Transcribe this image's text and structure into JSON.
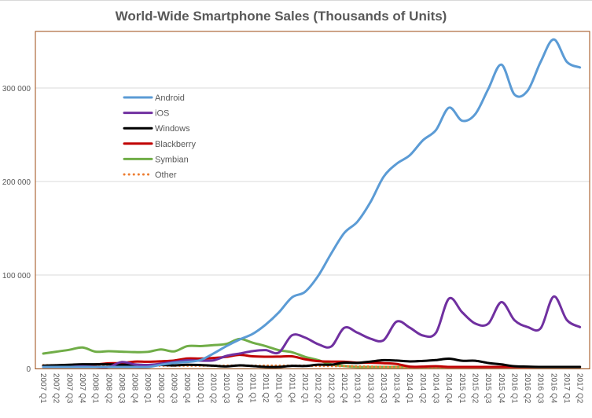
{
  "chart_data": {
    "type": "line",
    "title": "World-Wide Smartphone Sales (Thousands of Units)",
    "xlabel": "",
    "ylabel": "",
    "ylim": [
      0,
      360000
    ],
    "yticks": [
      0,
      100000,
      200000,
      300000
    ],
    "ytick_labels": [
      "0",
      "100 000",
      "200 000",
      "300 000"
    ],
    "grid": true,
    "legend_placement": "upper-left inside plot",
    "categories": [
      "2007 Q1",
      "2007 Q2",
      "2007 Q3",
      "2007 Q4",
      "2008 Q1",
      "2008 Q2",
      "2008 Q3",
      "2008 Q4",
      "2009 Q1",
      "2009 Q2",
      "2009 Q3",
      "2009 Q4",
      "2010 Q1",
      "2010 Q2",
      "2010 Q3",
      "2010 Q4",
      "2011 Q1",
      "2011 Q2",
      "2011 Q3",
      "2011 Q4",
      "2012 Q1",
      "2012 Q2",
      "2012 Q3",
      "2012 Q4",
      "2013 Q1",
      "2013 Q2",
      "2013 Q3",
      "2013 Q4",
      "2014 Q1",
      "2014 Q2",
      "2014 Q3",
      "2014 Q4",
      "2015 Q1",
      "2015 Q2",
      "2015 Q3",
      "2015 Q4",
      "2016 Q1",
      "2016 Q2",
      "2016 Q3",
      "2016 Q4",
      "2017 Q1",
      "2017 Q2"
    ],
    "series": [
      {
        "name": "Android",
        "color": "#5b9bd5",
        "style": "solid",
        "values": [
          0,
          0,
          0,
          0,
          0,
          0,
          500,
          1000,
          1500,
          4000,
          6000,
          7000,
          9000,
          16000,
          24000,
          31000,
          37000,
          47000,
          60000,
          76000,
          82000,
          99000,
          123000,
          145000,
          157000,
          178000,
          205000,
          219000,
          228000,
          244000,
          255000,
          279000,
          265000,
          272000,
          299000,
          325000,
          293000,
          297000,
          328000,
          352000,
          328000,
          322000
        ]
      },
      {
        "name": "iOS",
        "color": "#7030a0",
        "style": "solid",
        "values": [
          0,
          300,
          1100,
          2300,
          1700,
          700,
          6900,
          4400,
          3800,
          5200,
          7000,
          8700,
          8400,
          8700,
          13500,
          16000,
          18600,
          19600,
          17100,
          35500,
          33100,
          26000,
          23500,
          43500,
          38300,
          31900,
          30300,
          50200,
          43700,
          35300,
          38200,
          74800,
          60200,
          48100,
          48000,
          71000,
          51600,
          44400,
          43000,
          77000,
          51900,
          44300
        ]
      },
      {
        "name": "Windows",
        "color": "#000000",
        "style": "solid",
        "values": [
          3000,
          3500,
          4000,
          4500,
          4500,
          4500,
          4000,
          4000,
          3700,
          3800,
          3300,
          4000,
          3700,
          3000,
          2200,
          3400,
          2600,
          1700,
          1700,
          2800,
          2700,
          4100,
          4100,
          6200,
          6000,
          7400,
          8900,
          8500,
          7600,
          8100,
          9000,
          10500,
          8300,
          8300,
          5900,
          4400,
          2400,
          2000,
          900,
          1100,
          500,
          300
        ]
      },
      {
        "name": "Blackberry",
        "color": "#c00000",
        "style": "solid",
        "values": [
          2100,
          2400,
          3200,
          4000,
          4300,
          5600,
          5800,
          7400,
          7200,
          7700,
          8500,
          10700,
          10600,
          11200,
          12500,
          14600,
          13000,
          12600,
          12700,
          13000,
          9900,
          7900,
          7400,
          7300,
          6200,
          6200,
          5700,
          4800,
          2000,
          2000,
          2400,
          1700,
          1300,
          1200,
          1000,
          900,
          700,
          400,
          200,
          200,
          100,
          100
        ]
      },
      {
        "name": "Symbian",
        "color": "#70ad47",
        "style": "solid",
        "values": [
          16000,
          18000,
          20000,
          22500,
          18000,
          18500,
          18000,
          17500,
          17800,
          20400,
          18300,
          23900,
          24000,
          25000,
          26300,
          31600,
          27600,
          23900,
          19600,
          17400,
          12500,
          9000,
          4400,
          2600,
          1300,
          600,
          300,
          200,
          0,
          0,
          0,
          0,
          0,
          0,
          0,
          0,
          0,
          0,
          0,
          0,
          0,
          0
        ]
      },
      {
        "name": "Other",
        "color": "#ed7d31",
        "style": "dotted",
        "values": [
          3500,
          3500,
          3500,
          3500,
          3500,
          3500,
          3500,
          3200,
          3000,
          3000,
          3000,
          3000,
          3000,
          3000,
          3000,
          3200,
          3000,
          3000,
          3000,
          3000,
          3000,
          2800,
          2600,
          2500,
          2300,
          2000,
          1800,
          1700,
          1500,
          1500,
          1500,
          1500,
          1200,
          1200,
          1000,
          1000,
          1000,
          1000,
          1000,
          1000,
          1000,
          1000
        ]
      }
    ]
  }
}
